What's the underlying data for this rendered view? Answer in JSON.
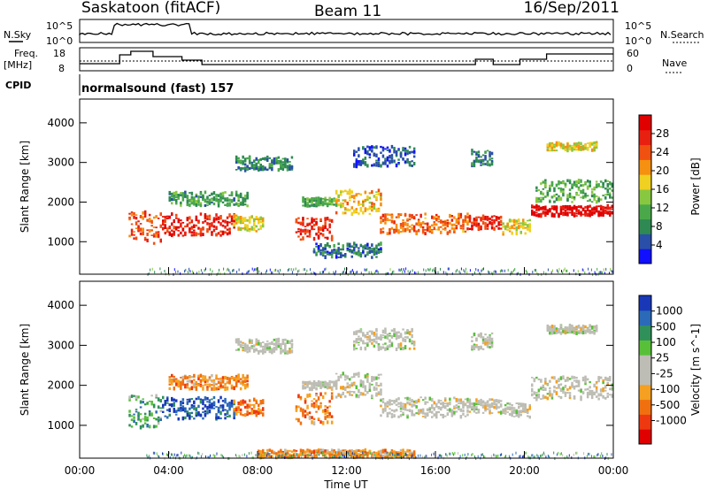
{
  "header": {
    "station": "Saskatoon (fitACF)",
    "beam": "Beam 11",
    "date": "16/Sep/2011"
  },
  "panels": {
    "nsky": {
      "label": "N.Sky",
      "right_label": "N.Search",
      "ticks_left": [
        "10^5",
        "10^0"
      ],
      "ticks_right": [
        "10^5",
        "10^0"
      ]
    },
    "freq": {
      "label_line1": "Freq.",
      "label_line2": "[MHz]",
      "right_label": "Nave",
      "ticks_left": [
        "18",
        "8"
      ],
      "ticks_right": [
        "60",
        "0"
      ]
    },
    "cpid": {
      "label": "CPID",
      "value": "normalsound (fast) 157"
    }
  },
  "colors": {
    "power": [
      "#1010ff",
      "#2a4fa8",
      "#2e8a52",
      "#4aa84a",
      "#88c840",
      "#f0d020",
      "#f59010",
      "#f05010",
      "#e82010",
      "#e00000"
    ],
    "velocity": [
      "#1838b8",
      "#2a6ab8",
      "#30905a",
      "#58c038",
      "#bdbdb5",
      "#bdbdb5",
      "#f5a020",
      "#f07010",
      "#ee3810",
      "#e00000"
    ]
  },
  "chart_data": [
    {
      "type": "heatmap",
      "name": "power",
      "xlabel": "",
      "ylabel": "Slant Range [km]",
      "xlim": [
        0,
        24
      ],
      "ylim": [
        180,
        4600
      ],
      "y_ticks": [
        1000,
        2000,
        3000,
        4000
      ],
      "colorbar": {
        "label": "Power [dB]",
        "range": [
          0,
          32
        ],
        "ticks": [
          4,
          8,
          12,
          16,
          20,
          24,
          28
        ]
      },
      "echo_regions": [
        {
          "t": [
            2.2,
            3.7
          ],
          "r": [
            950,
            1750
          ],
          "level": 0.75
        },
        {
          "t": [
            3.7,
            6.9
          ],
          "r": [
            1150,
            1700
          ],
          "level": 0.88
        },
        {
          "t": [
            6.9,
            8.2
          ],
          "r": [
            1250,
            1650
          ],
          "level": 0.55
        },
        {
          "t": [
            4.0,
            7.5
          ],
          "r": [
            1900,
            2250
          ],
          "level": 0.3
        },
        {
          "t": [
            7.0,
            9.5
          ],
          "r": [
            2800,
            3150
          ],
          "level": 0.25
        },
        {
          "t": [
            9.7,
            11.3
          ],
          "r": [
            1050,
            1600
          ],
          "level": 0.82
        },
        {
          "t": [
            10.0,
            11.5
          ],
          "r": [
            1900,
            2100
          ],
          "level": 0.35
        },
        {
          "t": [
            11.5,
            13.5
          ],
          "r": [
            1700,
            2300
          ],
          "level": 0.6
        },
        {
          "t": [
            13.5,
            17.5
          ],
          "r": [
            1200,
            1700
          ],
          "level": 0.72
        },
        {
          "t": [
            17.5,
            19.0
          ],
          "r": [
            1300,
            1650
          ],
          "level": 0.85
        },
        {
          "t": [
            19.0,
            20.3
          ],
          "r": [
            1200,
            1550
          ],
          "level": 0.55
        },
        {
          "t": [
            20.3,
            24.0
          ],
          "r": [
            1650,
            1900
          ],
          "level": 0.95
        },
        {
          "t": [
            20.5,
            24.0
          ],
          "r": [
            2000,
            2550
          ],
          "level": 0.35
        },
        {
          "t": [
            12.3,
            15.0
          ],
          "r": [
            2900,
            3400
          ],
          "level": 0.15
        },
        {
          "t": [
            17.6,
            18.6
          ],
          "r": [
            2900,
            3300
          ],
          "level": 0.25
        },
        {
          "t": [
            21.0,
            23.3
          ],
          "r": [
            3300,
            3500
          ],
          "level": 0.55
        },
        {
          "t": [
            10.5,
            13.5
          ],
          "r": [
            600,
            950
          ],
          "level": 0.2
        }
      ]
    },
    {
      "type": "heatmap",
      "name": "velocity",
      "xlabel": "Time UT",
      "ylabel": "Slant Range [km]",
      "xlim": [
        0,
        24
      ],
      "ylim": [
        180,
        4600
      ],
      "x_ticks": [
        "00:00",
        "04:00",
        "08:00",
        "12:00",
        "16:00",
        "20:00",
        "00:00"
      ],
      "y_ticks": [
        1000,
        2000,
        3000,
        4000
      ],
      "colorbar": {
        "label": "Velocity [m s^-1]",
        "ticks": [
          "1000",
          "500",
          "100",
          "25",
          "-25",
          "-100",
          "-500",
          "-1000"
        ]
      },
      "echo_regions": [
        {
          "t": [
            2.2,
            3.7
          ],
          "r": [
            950,
            1750
          ],
          "level": 0.3
        },
        {
          "t": [
            3.7,
            6.9
          ],
          "r": [
            1150,
            1700
          ],
          "level": 0.12
        },
        {
          "t": [
            6.9,
            8.2
          ],
          "r": [
            1250,
            1650
          ],
          "level": 0.75
        },
        {
          "t": [
            4.0,
            7.5
          ],
          "r": [
            1900,
            2250
          ],
          "level": 0.7
        },
        {
          "t": [
            7.0,
            9.5
          ],
          "r": [
            2800,
            3150
          ],
          "level": 0.5
        },
        {
          "t": [
            9.7,
            11.3
          ],
          "r": [
            1050,
            1800
          ],
          "level": 0.72
        },
        {
          "t": [
            10.0,
            11.5
          ],
          "r": [
            1900,
            2100
          ],
          "level": 0.5
        },
        {
          "t": [
            11.5,
            13.5
          ],
          "r": [
            1700,
            2300
          ],
          "level": 0.5
        },
        {
          "t": [
            13.5,
            17.5
          ],
          "r": [
            1200,
            1700
          ],
          "level": 0.5
        },
        {
          "t": [
            17.5,
            19.0
          ],
          "r": [
            1300,
            1650
          ],
          "level": 0.5
        },
        {
          "t": [
            19.0,
            20.3
          ],
          "r": [
            1200,
            1550
          ],
          "level": 0.5
        },
        {
          "t": [
            20.3,
            24.0
          ],
          "r": [
            1650,
            2200
          ],
          "level": 0.5
        },
        {
          "t": [
            12.3,
            15.0
          ],
          "r": [
            2900,
            3400
          ],
          "level": 0.5
        },
        {
          "t": [
            17.6,
            18.6
          ],
          "r": [
            2900,
            3300
          ],
          "level": 0.5
        },
        {
          "t": [
            21.0,
            23.3
          ],
          "r": [
            3300,
            3500
          ],
          "level": 0.5
        },
        {
          "t": [
            8.0,
            15.0
          ],
          "r": [
            200,
            380
          ],
          "level": 0.68
        }
      ]
    }
  ]
}
